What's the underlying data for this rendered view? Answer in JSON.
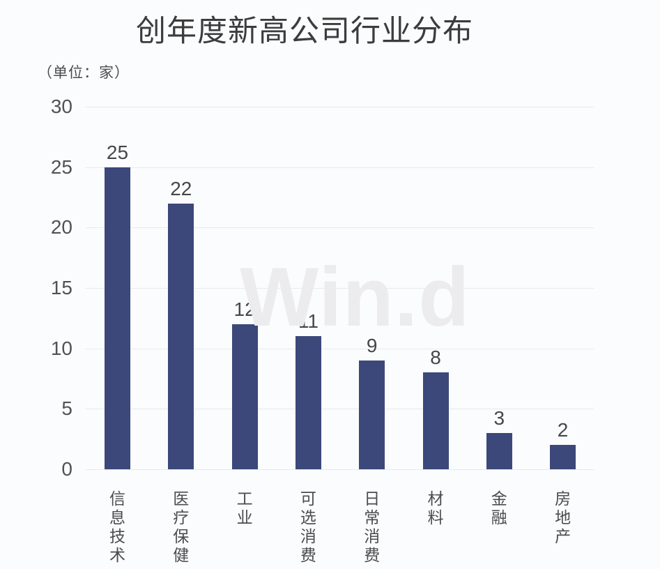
{
  "chart_data": {
    "type": "bar",
    "title": "创年度新高公司行业分布",
    "unit_label": "（单位：家）",
    "unit": "家",
    "categories": [
      "信息技术",
      "医疗保健",
      "工业",
      "可选消费",
      "日常消费",
      "材料",
      "金融",
      "房地产"
    ],
    "values": [
      25,
      22,
      12,
      11,
      9,
      8,
      3,
      2
    ],
    "yticks": [
      0,
      5,
      10,
      15,
      20,
      25,
      30
    ],
    "ylim": [
      0,
      30
    ],
    "xlabel": "",
    "ylabel": "",
    "grid": "horizontal",
    "legend": "none",
    "watermark_text": "Win.d",
    "category_label_orientation": "vertical",
    "colors": {
      "bar": "#3b4879",
      "grid": "#e8e9eb",
      "title": "#3c3c3c",
      "tick_label": "#525252",
      "value_label": "#474747",
      "category_label": "#4c4c4c",
      "watermark": "#ececee",
      "background": "#fbfcfe"
    }
  }
}
